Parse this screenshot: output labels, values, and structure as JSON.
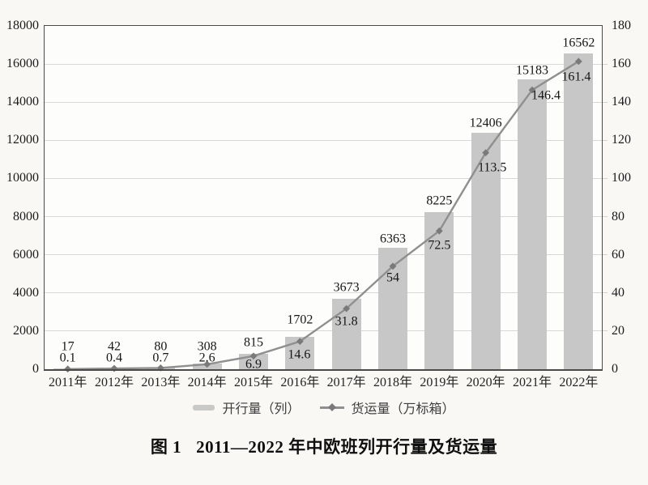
{
  "chart_data": {
    "type": "bar+line",
    "categories": [
      "2011年",
      "2012年",
      "2013年",
      "2014年",
      "2015年",
      "2016年",
      "2017年",
      "2018年",
      "2019年",
      "2020年",
      "2021年",
      "2022年"
    ],
    "series": [
      {
        "name": "开行量（列）",
        "type": "bar",
        "axis": "left",
        "color": "#c6c7c6",
        "values": [
          17,
          42,
          80,
          308,
          815,
          1702,
          3673,
          6363,
          8225,
          12406,
          15183,
          16562
        ]
      },
      {
        "name": "货运量（万标箱）",
        "type": "line",
        "axis": "right",
        "color": "#8f8f8f",
        "marker": "diamond",
        "marker_color": "#7a7a7a",
        "values": [
          0.1,
          0.4,
          0.7,
          2.6,
          6.9,
          14.6,
          31.8,
          54,
          72.5,
          113.5,
          146.4,
          161.4
        ]
      }
    ],
    "left_axis": {
      "min": 0,
      "max": 18000,
      "step": 2000,
      "ticks": [
        "0",
        "2000",
        "4000",
        "6000",
        "8000",
        "10000",
        "12000",
        "14000",
        "16000",
        "18000"
      ]
    },
    "right_axis": {
      "min": 0,
      "max": 180,
      "step": 20,
      "ticks": [
        "0",
        "20",
        "40",
        "60",
        "80",
        "100",
        "120",
        "140",
        "160",
        "180"
      ]
    },
    "grid": true,
    "legend_position": "bottom",
    "title": "图 1　2011—2022 年中欧班列开行量及货运量"
  },
  "legend": {
    "bar_label": "开行量（列）",
    "line_label": "货运量（万标箱）"
  },
  "caption": {
    "figure_label": "图 1",
    "title_text": "2011—2022 年中欧班列开行量及货运量"
  },
  "colors": {
    "page_background": "#faf8f5",
    "plot_background": "#fdfdfc",
    "bar": "#c6c7c6",
    "line": "#8f8f8f",
    "marker": "#7a7a7a",
    "gridline": "#d8d8d6",
    "axis_border": "#4a4a4a",
    "text": "#161616"
  }
}
